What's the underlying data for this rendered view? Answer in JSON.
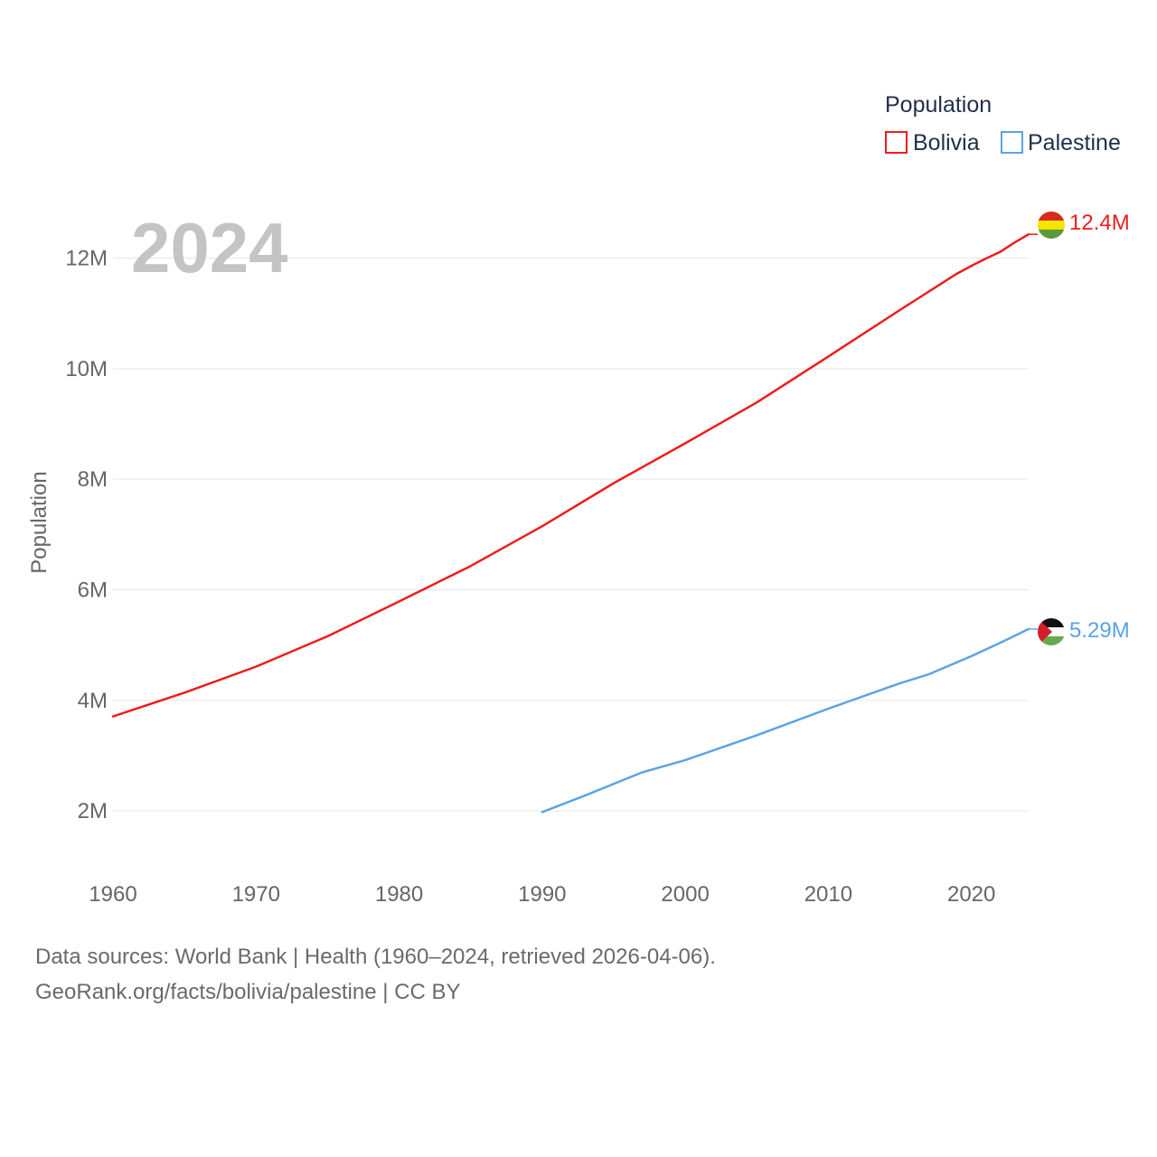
{
  "chart_data": {
    "type": "line",
    "title": "2024",
    "xlabel": "",
    "ylabel": "Population",
    "xlim": [
      1960,
      2024
    ],
    "ylim": [
      1300000,
      13300000
    ],
    "x_ticks": [
      1960,
      1970,
      1980,
      1990,
      2000,
      2010,
      2020
    ],
    "y_ticks": [
      {
        "value": 2000000,
        "label": "2M"
      },
      {
        "value": 4000000,
        "label": "4M"
      },
      {
        "value": 6000000,
        "label": "6M"
      },
      {
        "value": 8000000,
        "label": "8M"
      },
      {
        "value": 10000000,
        "label": "10M"
      },
      {
        "value": 12000000,
        "label": "12M"
      }
    ],
    "grid": true,
    "legend": {
      "title": "Population",
      "position": "top-right"
    },
    "series": [
      {
        "name": "Bolivia",
        "color": "#ee1c1c",
        "end_label": "12.4M",
        "flag": "bolivia-flag-icon",
        "x": [
          1960,
          1965,
          1970,
          1975,
          1980,
          1985,
          1990,
          1995,
          2000,
          2005,
          2010,
          2015,
          2019,
          2020,
          2021,
          2022,
          2023,
          2024
        ],
        "y": [
          3710000,
          4140000,
          4610000,
          5160000,
          5790000,
          6430000,
          7150000,
          7930000,
          8650000,
          9390000,
          10220000,
          11060000,
          11720000,
          11860000,
          11990000,
          12110000,
          12280000,
          12430000
        ]
      },
      {
        "name": "Palestine",
        "color": "#5aa4e6",
        "end_label": "5.29M",
        "flag": "palestine-flag-icon",
        "x": [
          1990,
          1993,
          1997,
          2000,
          2005,
          2010,
          2015,
          2017,
          2020,
          2022,
          2024
        ],
        "y": [
          1980000,
          2280000,
          2700000,
          2920000,
          3370000,
          3850000,
          4310000,
          4470000,
          4800000,
          5040000,
          5290000
        ]
      }
    ]
  },
  "footer": {
    "line1": "Data sources: World Bank | Health (1960–2024, retrieved 2026-04-06).",
    "line2": "GeoRank.org/facts/bolivia/palestine | CC BY"
  }
}
